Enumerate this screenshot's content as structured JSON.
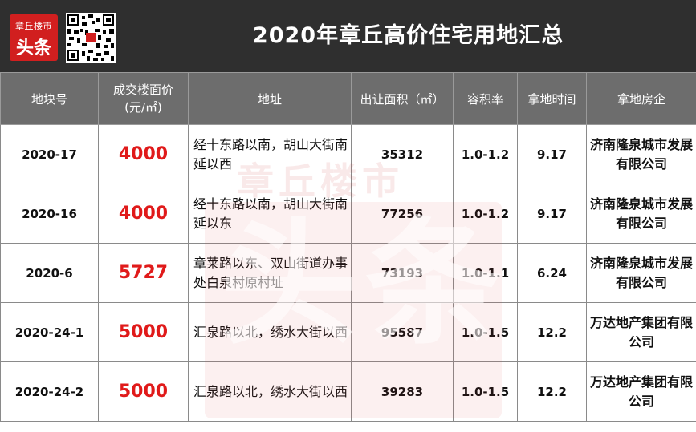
{
  "header": {
    "logo_line1": "章丘楼市",
    "logo_line2": "头条",
    "title": "2020年章丘高价住宅用地汇总"
  },
  "table": {
    "columns": [
      "地块号",
      "成交楼面价\n(元/㎡)",
      "地址",
      "出让面积（㎡）",
      "容积率",
      "拿地时间",
      "拿地房企"
    ],
    "rows": [
      {
        "id": "2020-17",
        "price": "4000",
        "address": "经十东路以南，胡山大街南延以西",
        "area": "35312",
        "far": "1.0-1.2",
        "date": "9.17",
        "developer": "济南隆泉城市发展有限公司"
      },
      {
        "id": "2020-16",
        "price": "4000",
        "address": "经十东路以南，胡山大街南延以东",
        "area": "77256",
        "far": "1.0-1.2",
        "date": "9.17",
        "developer": "济南隆泉城市发展有限公司"
      },
      {
        "id": "2020-6",
        "price": "5727",
        "address": "章莱路以东、双山街道办事处白泉村原村址",
        "area": "73193",
        "far": "1.0-1.1",
        "date": "6.24",
        "developer": "济南隆泉城市发展有限公司"
      },
      {
        "id": "2020-24-1",
        "price": "5000",
        "address": "汇泉路以北，绣水大街以西",
        "area": "95587",
        "far": "1.0-1.5",
        "date": "12.2",
        "developer": "万达地产集团有限公司"
      },
      {
        "id": "2020-24-2",
        "price": "5000",
        "address": "汇泉路以北，绣水大街以西",
        "area": "39283",
        "far": "1.0-1.5",
        "date": "12.2",
        "developer": "万达地产集团有限公司"
      }
    ]
  },
  "watermark": {
    "top_text": "章丘楼市",
    "big_text": "头条"
  },
  "colors": {
    "header_bg": "#2f2f2f",
    "column_header_bg": "#6d6d6d",
    "price_red": "#e01a1a",
    "logo_red": "#d11f1f"
  }
}
